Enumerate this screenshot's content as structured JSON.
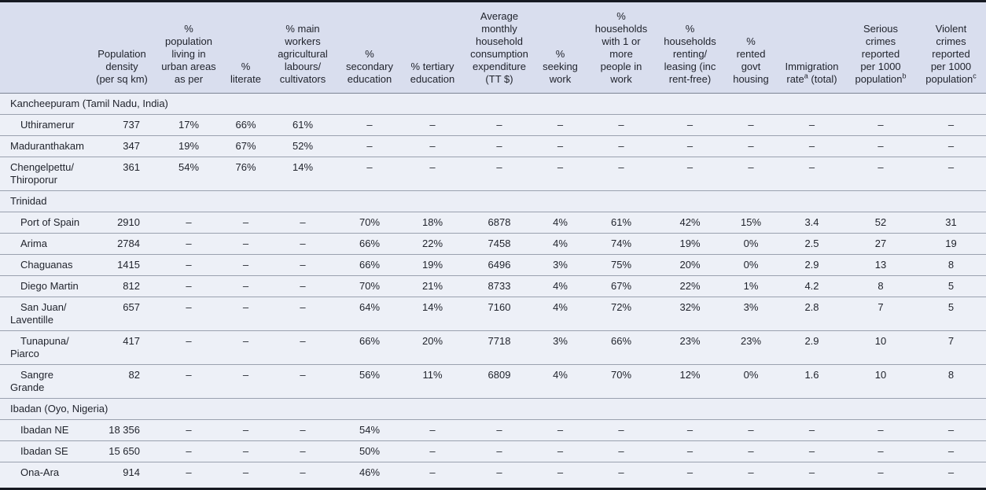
{
  "page": {
    "background": "#edf0f7",
    "header_background": "#d9deee",
    "frame_border_color": "#171a22",
    "row_line_color": "#9aa1af",
    "text_color": "#1f222b",
    "missing_value_glyph": "–"
  },
  "table": {
    "columns": [
      {
        "id": "name",
        "label": ""
      },
      {
        "id": "density",
        "label": "Population\ndensity\n(per sq km)"
      },
      {
        "id": "urban",
        "label": "%\npopulation\nliving in\nurban areas\nas per"
      },
      {
        "id": "literate",
        "label": "%\nliterate"
      },
      {
        "id": "agri",
        "label": "% main\nworkers\nagricultural\nlabours/\ncultivators"
      },
      {
        "id": "secondary",
        "label": "%\nsecondary\neducation"
      },
      {
        "id": "tertiary",
        "label": "% tertiary\neducation"
      },
      {
        "id": "consumption",
        "label": "Average\nmonthly\nhousehold\nconsumption\nexpenditure\n(TT $)"
      },
      {
        "id": "seeking",
        "label": "%\nseeking\nwork"
      },
      {
        "id": "inwork",
        "label": "%\nhouseholds\nwith 1 or\nmore\npeople in\nwork"
      },
      {
        "id": "renting",
        "label": "%\nhouseholds\nrenting/\nleasing (inc\nrent-free)"
      },
      {
        "id": "govt",
        "label": "%\nrented\ngovt\nhousing"
      },
      {
        "id": "immigration",
        "label": "Immigration\nrate^a (total)"
      },
      {
        "id": "serious",
        "label": "Serious\ncrimes\nreported\nper 1000\npopulation^b"
      },
      {
        "id": "violent",
        "label": "Violent\ncrimes\nreported\nper 1000\npopulation^c"
      }
    ],
    "groups": [
      {
        "label": "Kancheepuram (Tamil Nadu, India)",
        "rows": [
          {
            "name": "Uthiramerur",
            "indent": true,
            "values": [
              "737",
              "17%",
              "66%",
              "61%",
              "–",
              "–",
              "–",
              "–",
              "–",
              "–",
              "–",
              "–",
              "–",
              "–"
            ]
          },
          {
            "name": "Maduranthakam",
            "indent": false,
            "values": [
              "347",
              "19%",
              "67%",
              "52%",
              "–",
              "–",
              "–",
              "–",
              "–",
              "–",
              "–",
              "–",
              "–",
              "–"
            ]
          },
          {
            "name": "Chengelpettu/\nThiroporur",
            "indent": false,
            "values": [
              "361",
              "54%",
              "76%",
              "14%",
              "–",
              "–",
              "–",
              "–",
              "–",
              "–",
              "–",
              "–",
              "–",
              "–"
            ]
          }
        ]
      },
      {
        "label": "Trinidad",
        "rows": [
          {
            "name": "Port of Spain",
            "indent": true,
            "values": [
              "2910",
              "–",
              "–",
              "–",
              "70%",
              "18%",
              "6878",
              "4%",
              "61%",
              "42%",
              "15%",
              "3.4",
              "52",
              "31"
            ]
          },
          {
            "name": "Arima",
            "indent": true,
            "values": [
              "2784",
              "–",
              "–",
              "–",
              "66%",
              "22%",
              "7458",
              "4%",
              "74%",
              "19%",
              "0%",
              "2.5",
              "27",
              "19"
            ]
          },
          {
            "name": "Chaguanas",
            "indent": true,
            "values": [
              "1415",
              "–",
              "–",
              "–",
              "66%",
              "19%",
              "6496",
              "3%",
              "75%",
              "20%",
              "0%",
              "2.9",
              "13",
              "8"
            ]
          },
          {
            "name": "Diego Martin",
            "indent": true,
            "values": [
              "812",
              "–",
              "–",
              "–",
              "70%",
              "21%",
              "8733",
              "4%",
              "67%",
              "22%",
              "1%",
              "4.2",
              "8",
              "5"
            ]
          },
          {
            "name": "San Juan/\nLaventille",
            "indent": true,
            "values": [
              "657",
              "–",
              "–",
              "–",
              "64%",
              "14%",
              "7160",
              "4%",
              "72%",
              "32%",
              "3%",
              "2.8",
              "7",
              "5"
            ]
          },
          {
            "name": "Tunapuna/\nPiarco",
            "indent": true,
            "values": [
              "417",
              "–",
              "–",
              "–",
              "66%",
              "20%",
              "7718",
              "3%",
              "66%",
              "23%",
              "23%",
              "2.9",
              "10",
              "7"
            ]
          },
          {
            "name": "Sangre\nGrande",
            "indent": true,
            "values": [
              "82",
              "–",
              "–",
              "–",
              "56%",
              "11%",
              "6809",
              "4%",
              "70%",
              "12%",
              "0%",
              "1.6",
              "10",
              "8"
            ]
          }
        ]
      },
      {
        "label": "Ibadan (Oyo, Nigeria)",
        "rows": [
          {
            "name": "Ibadan NE",
            "indent": true,
            "values": [
              "18 356",
              "–",
              "–",
              "–",
              "54%",
              "–",
              "–",
              "–",
              "–",
              "–",
              "–",
              "–",
              "–",
              "–"
            ]
          },
          {
            "name": "Ibadan SE",
            "indent": true,
            "values": [
              "15 650",
              "–",
              "–",
              "–",
              "50%",
              "–",
              "–",
              "–",
              "–",
              "–",
              "–",
              "–",
              "–",
              "–"
            ]
          },
          {
            "name": "Ona-Ara",
            "indent": true,
            "values": [
              "914",
              "–",
              "–",
              "–",
              "46%",
              "–",
              "–",
              "–",
              "–",
              "–",
              "–",
              "–",
              "–",
              "–"
            ]
          }
        ]
      }
    ]
  }
}
